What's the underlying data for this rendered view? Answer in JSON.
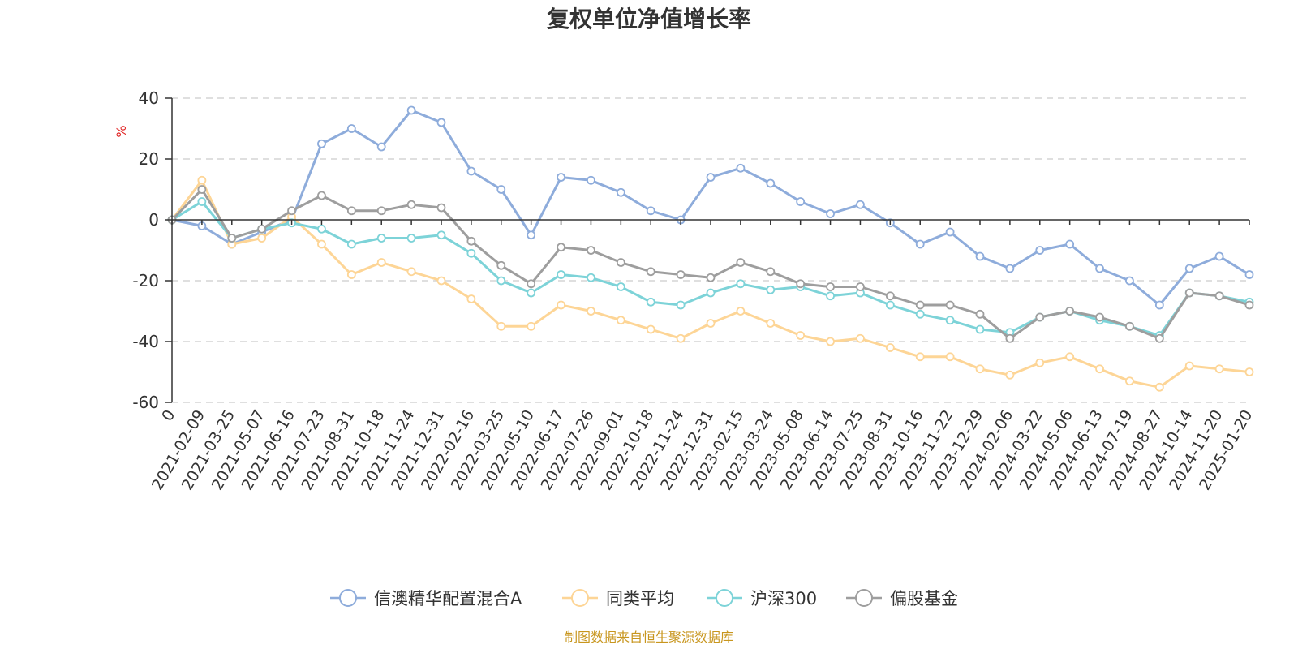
{
  "title": "复权单位净值增长率",
  "source": "制图数据来自恒生聚源数据库",
  "colors": {
    "source_text": "#c8961e",
    "unit_text": "#e02020"
  },
  "chart_data": {
    "type": "line",
    "title": "复权单位净值增长率",
    "ylabel": "%",
    "ylim": [
      -60,
      40
    ],
    "y_ticks": [
      40,
      20,
      0,
      -20,
      -40,
      -60
    ],
    "y_tick_labels": [
      "40",
      "20",
      "0",
      "-20",
      "-40",
      "-60"
    ],
    "x_tick_labels": [
      "0",
      "2021-02-09",
      "2021-03-25",
      "2021-05-07",
      "2021-06-16",
      "2021-07-23",
      "2021-08-31",
      "2021-10-18",
      "2021-11-24",
      "2021-12-31",
      "2022-02-16",
      "2022-03-25",
      "2022-05-10",
      "2022-06-17",
      "2022-07-26",
      "2022-09-01",
      "2022-10-18",
      "2022-11-24",
      "2022-12-31",
      "2023-02-15",
      "2023-03-24",
      "2023-05-08",
      "2023-06-14",
      "2023-07-25",
      "2023-08-31",
      "2023-10-16",
      "2023-11-22",
      "2023-12-29",
      "2024-02-06",
      "2024-03-22",
      "2024-05-06",
      "2024-06-13",
      "2024-07-19",
      "2024-08-27",
      "2024-10-14",
      "2024-11-20",
      "2025-01-20"
    ],
    "grid": true,
    "legend_position": "bottom-center",
    "series": [
      {
        "name": "信澳精华配置混合A",
        "color": "#8eacdb",
        "values": [
          0,
          -2,
          -8,
          -4,
          0,
          25,
          30,
          24,
          36,
          32,
          16,
          10,
          -5,
          14,
          13,
          9,
          3,
          0,
          14,
          17,
          12,
          6,
          2,
          5,
          -1,
          -8,
          -4,
          -12,
          -16,
          -10,
          -8,
          -16,
          -20,
          -28,
          -16,
          -12,
          -18
        ]
      },
      {
        "name": "同类平均",
        "color": "#fdd596",
        "values": [
          0,
          13,
          -8,
          -6,
          1,
          -8,
          -18,
          -14,
          -17,
          -20,
          -26,
          -35,
          -35,
          -28,
          -30,
          -33,
          -36,
          -39,
          -34,
          -30,
          -34,
          -38,
          -40,
          -39,
          -42,
          -45,
          -45,
          -49,
          -51,
          -47,
          -45,
          -49,
          -53,
          -55,
          -48,
          -49,
          -50
        ]
      },
      {
        "name": "沪深300",
        "color": "#7dd3d8",
        "values": [
          0,
          6,
          -6,
          -3,
          -1,
          -3,
          -8,
          -6,
          -6,
          -5,
          -11,
          -20,
          -24,
          -18,
          -19,
          -22,
          -27,
          -28,
          -24,
          -21,
          -23,
          -22,
          -25,
          -24,
          -28,
          -31,
          -33,
          -36,
          -37,
          -32,
          -30,
          -33,
          -35,
          -38,
          -24,
          -25,
          -27
        ]
      },
      {
        "name": "偏股基金",
        "color": "#9e9e9e",
        "values": [
          0,
          10,
          -6,
          -3,
          3,
          8,
          3,
          3,
          5,
          4,
          -7,
          -15,
          -21,
          -9,
          -10,
          -14,
          -17,
          -18,
          -19,
          -14,
          -17,
          -21,
          -22,
          -22,
          -25,
          -28,
          -28,
          -31,
          -39,
          -32,
          -30,
          -32,
          -35,
          -39,
          -24,
          -25,
          -28
        ]
      }
    ]
  }
}
